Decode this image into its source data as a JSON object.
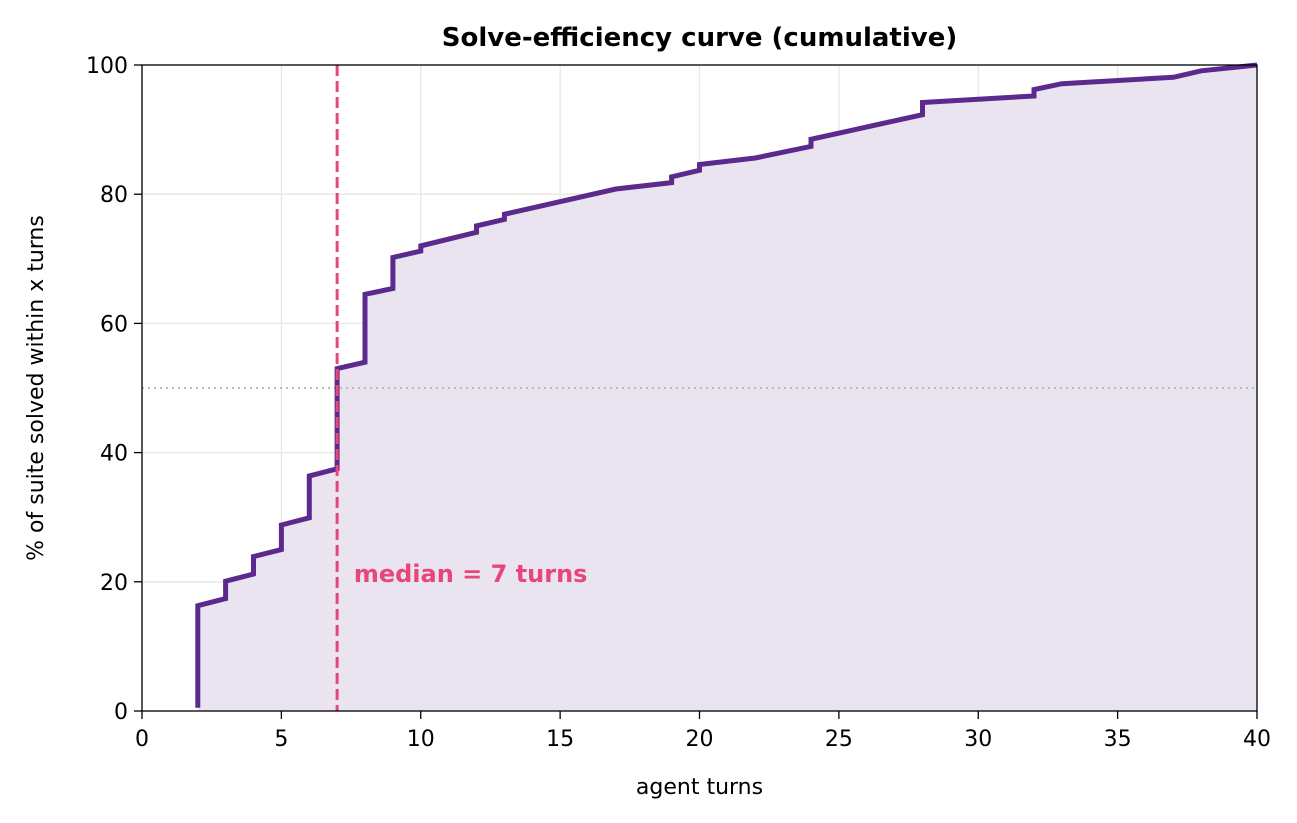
{
  "chart_data": {
    "type": "line",
    "title": "Solve-efficiency curve (cumulative)",
    "xlabel": "agent turns",
    "ylabel": "% of suite solved within x turns",
    "xlim": [
      0,
      40
    ],
    "ylim": [
      0,
      100
    ],
    "xticks": [
      0,
      5,
      10,
      15,
      20,
      25,
      30,
      35,
      40
    ],
    "yticks": [
      0,
      20,
      40,
      60,
      80,
      100
    ],
    "grid": true,
    "series": [
      {
        "values": [
          [
            2,
            0.5
          ],
          [
            2,
            16.3
          ],
          [
            3,
            17.4
          ],
          [
            3,
            20.1
          ],
          [
            4,
            21.2
          ],
          [
            4,
            23.9
          ],
          [
            5,
            25.0
          ],
          [
            5,
            28.8
          ],
          [
            6,
            29.9
          ],
          [
            6,
            36.4
          ],
          [
            7,
            37.5
          ],
          [
            7,
            53.0
          ],
          [
            8,
            54.0
          ],
          [
            8,
            64.5
          ],
          [
            9,
            65.4
          ],
          [
            9,
            70.2
          ],
          [
            10,
            71.2
          ],
          [
            10,
            72.0
          ],
          [
            12,
            74.1
          ],
          [
            12,
            75.1
          ],
          [
            13,
            76.1
          ],
          [
            13,
            76.9
          ],
          [
            17,
            80.8
          ],
          [
            19,
            81.8
          ],
          [
            19,
            82.7
          ],
          [
            20,
            83.7
          ],
          [
            20,
            84.6
          ],
          [
            22,
            85.6
          ],
          [
            24,
            87.4
          ],
          [
            24,
            88.5
          ],
          [
            28,
            92.3
          ],
          [
            28,
            94.2
          ],
          [
            32,
            95.2
          ],
          [
            32,
            96.2
          ],
          [
            33,
            97.1
          ],
          [
            37,
            98.1
          ],
          [
            38,
            99.1
          ],
          [
            40,
            100
          ]
        ],
        "color": "#5b2a8c"
      }
    ],
    "reference_lines": {
      "median_x": 7,
      "half_y": 50
    },
    "annotation": {
      "text": "median = 7 turns",
      "x": 7.6,
      "y": 20,
      "color": "#e8457a"
    },
    "colors": {
      "line": "#5b2a8c",
      "fill": "#e9e4ef",
      "median": "#e8457a",
      "half": "#bbbbbb",
      "grid": "#e6e6e6"
    }
  }
}
